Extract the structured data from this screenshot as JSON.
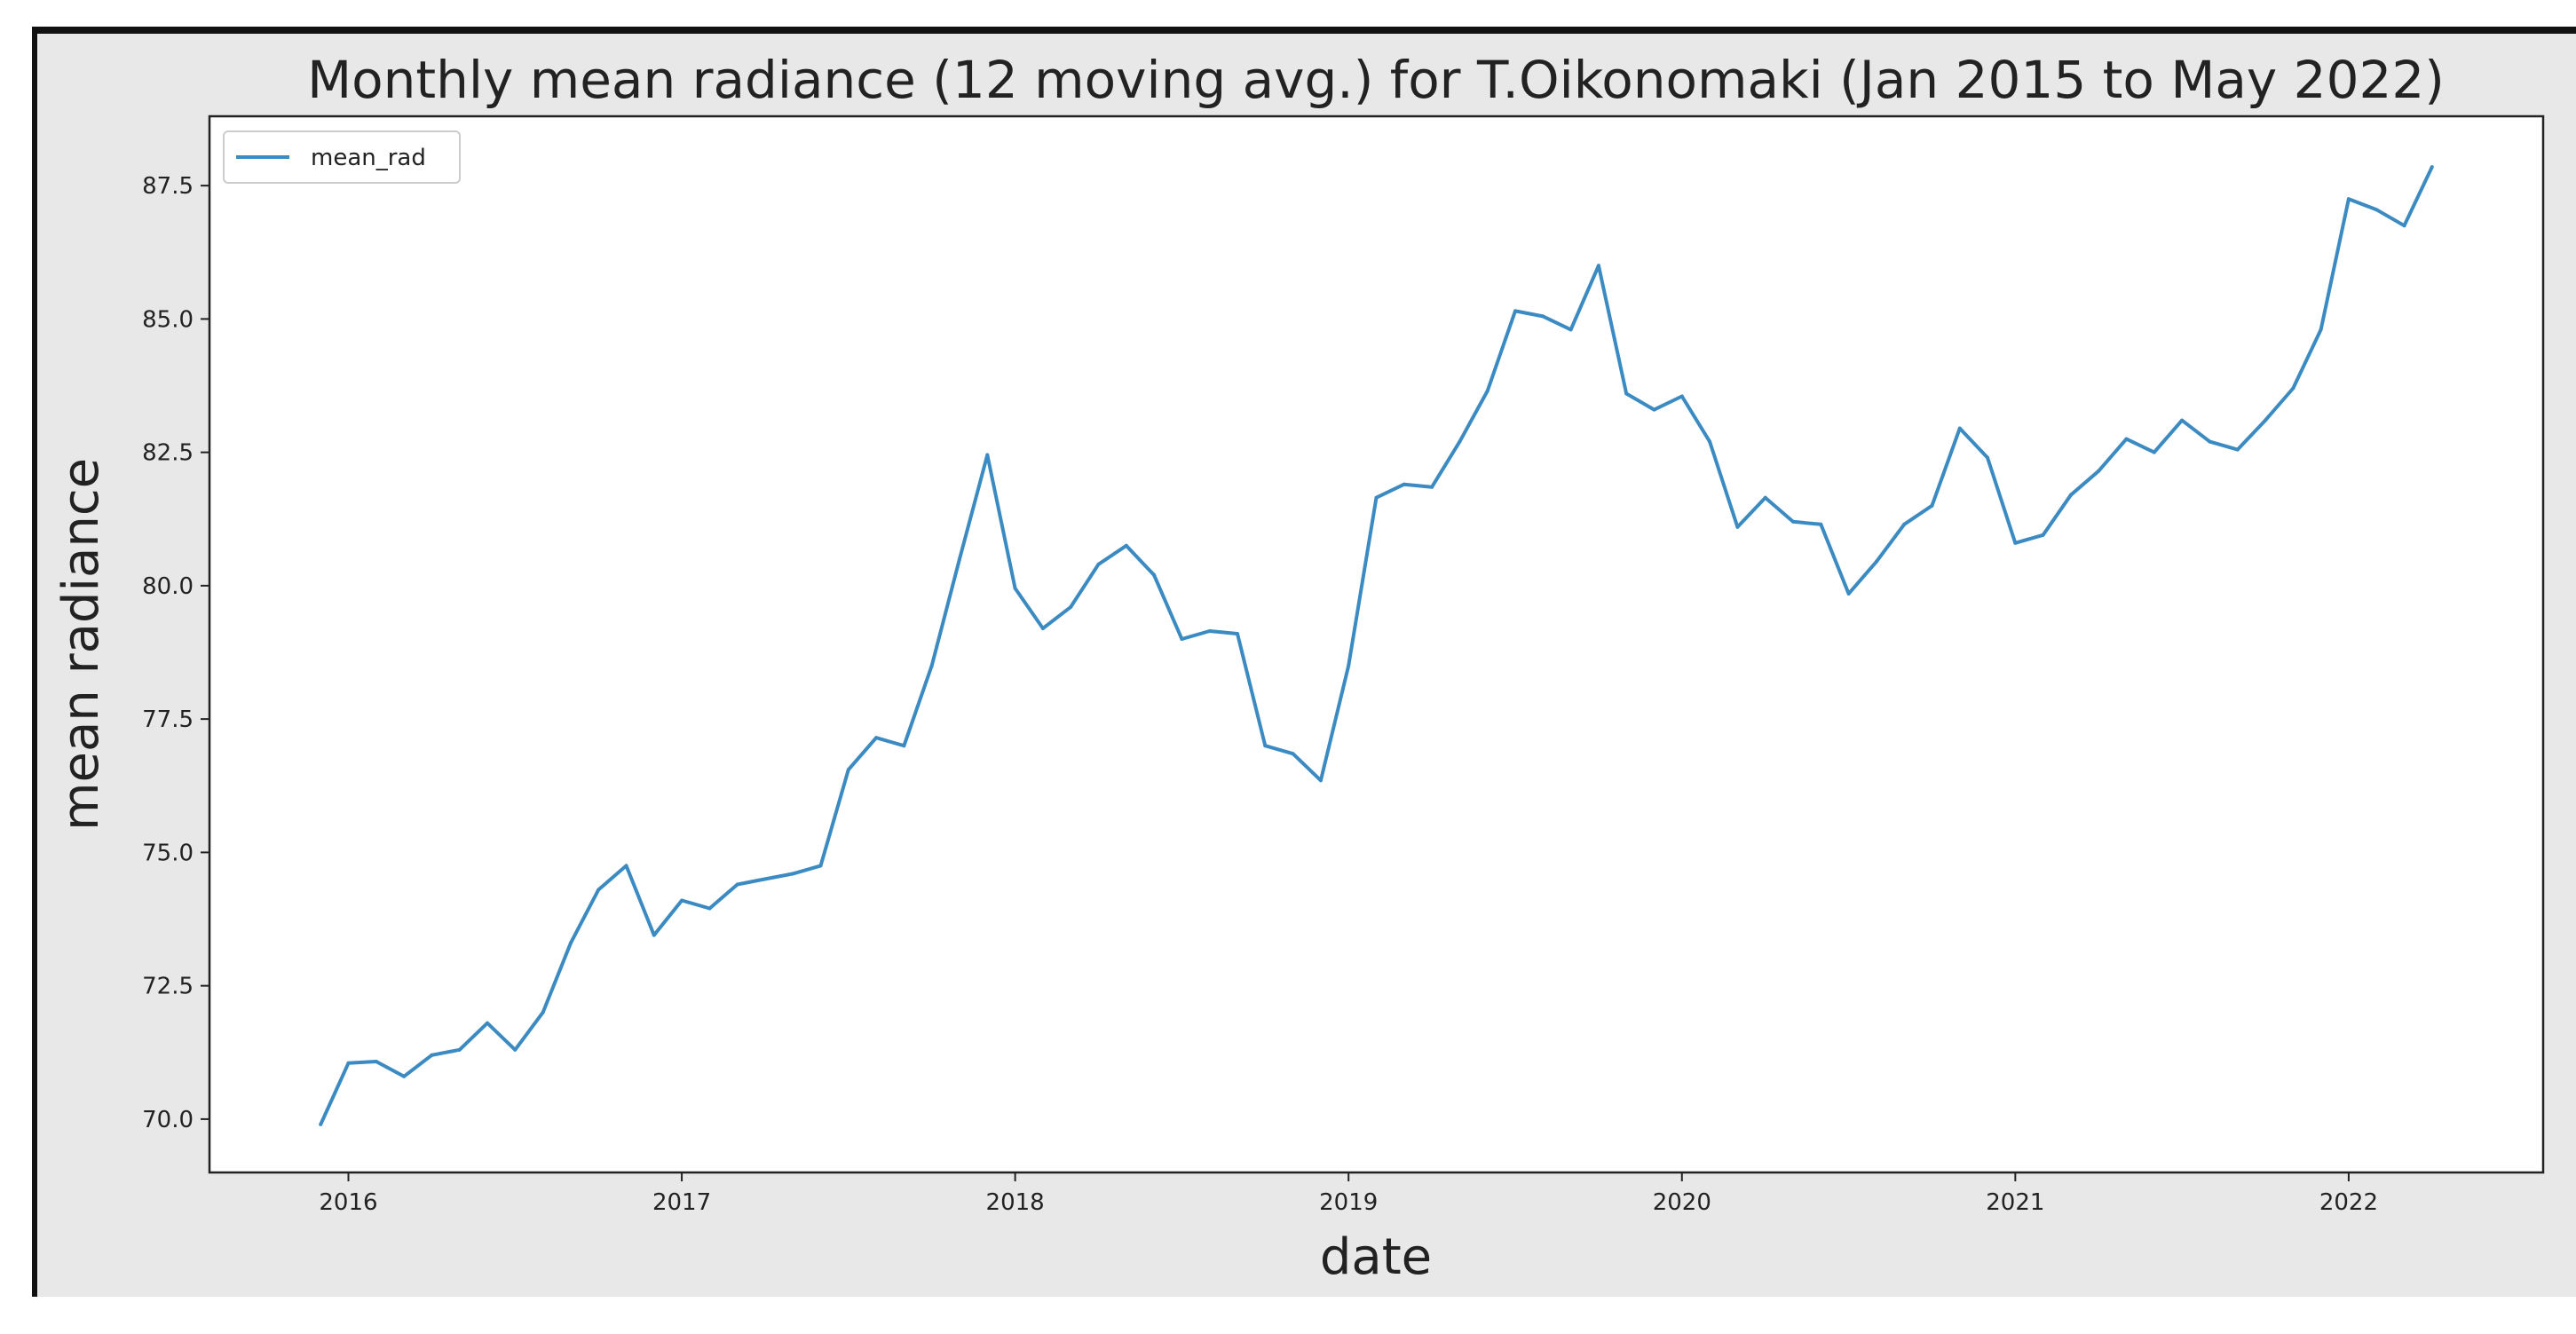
{
  "chart_data": {
    "type": "line",
    "title": "Monthly mean radiance (12 moving avg.) for T.Oikonomaki (Jan 2015 to May 2022)",
    "xlabel": "date",
    "ylabel": "mean radiance",
    "x_ticks": [
      "2016",
      "2017",
      "2018",
      "2019",
      "2020",
      "2021",
      "2022"
    ],
    "y_ticks": [
      "70.0",
      "72.5",
      "75.0",
      "77.5",
      "80.0",
      "82.5",
      "85.0",
      "87.5"
    ],
    "ylim": [
      69.0,
      88.8
    ],
    "xlim": [
      "2015-08",
      "2022-08"
    ],
    "grid": false,
    "legend": {
      "position": "top-left",
      "entries": [
        "mean_rad"
      ]
    },
    "series": [
      {
        "name": "mean_rad",
        "color": "#3b8bc2",
        "x": [
          "2015-12",
          "2016-01",
          "2016-02",
          "2016-03",
          "2016-04",
          "2016-05",
          "2016-06",
          "2016-07",
          "2016-08",
          "2016-09",
          "2016-10",
          "2016-11",
          "2016-12",
          "2017-01",
          "2017-02",
          "2017-03",
          "2017-04",
          "2017-05",
          "2017-06",
          "2017-07",
          "2017-08",
          "2017-09",
          "2017-10",
          "2017-11",
          "2017-12",
          "2018-01",
          "2018-02",
          "2018-03",
          "2018-04",
          "2018-05",
          "2018-06",
          "2018-07",
          "2018-08",
          "2018-09",
          "2018-10",
          "2018-11",
          "2018-12",
          "2019-01",
          "2019-02",
          "2019-03",
          "2019-04",
          "2019-05",
          "2019-06",
          "2019-07",
          "2019-08",
          "2019-09",
          "2019-10",
          "2019-11",
          "2019-12",
          "2020-01",
          "2020-02",
          "2020-03",
          "2020-04",
          "2020-05",
          "2020-06",
          "2020-07",
          "2020-08",
          "2020-09",
          "2020-10",
          "2020-11",
          "2020-12",
          "2021-01",
          "2021-02",
          "2021-03",
          "2021-04",
          "2021-05",
          "2021-06",
          "2021-07",
          "2021-08",
          "2021-09",
          "2021-10",
          "2021-11",
          "2021-12",
          "2022-01",
          "2022-02",
          "2022-03",
          "2022-04"
        ],
        "values": [
          69.9,
          71.05,
          71.08,
          70.8,
          71.2,
          71.3,
          71.8,
          71.3,
          72.0,
          73.3,
          74.3,
          74.75,
          73.45,
          74.1,
          73.95,
          74.4,
          74.5,
          74.6,
          74.75,
          76.55,
          77.15,
          77.0,
          78.5,
          80.5,
          82.45,
          79.95,
          79.2,
          79.6,
          80.4,
          80.75,
          80.2,
          79.0,
          79.15,
          79.1,
          77.0,
          76.85,
          76.35,
          78.5,
          81.65,
          81.9,
          81.85,
          82.7,
          83.65,
          85.15,
          85.05,
          84.8,
          86.0,
          83.6,
          83.3,
          83.55,
          82.7,
          81.1,
          81.65,
          81.2,
          81.15,
          79.85,
          80.45,
          81.15,
          81.5,
          82.95,
          82.4,
          80.8,
          80.95,
          81.7,
          82.15,
          82.75,
          82.5,
          83.1,
          82.7,
          82.55,
          83.1,
          83.7,
          84.8,
          87.25,
          87.05,
          86.75,
          87.85
        ]
      }
    ]
  }
}
